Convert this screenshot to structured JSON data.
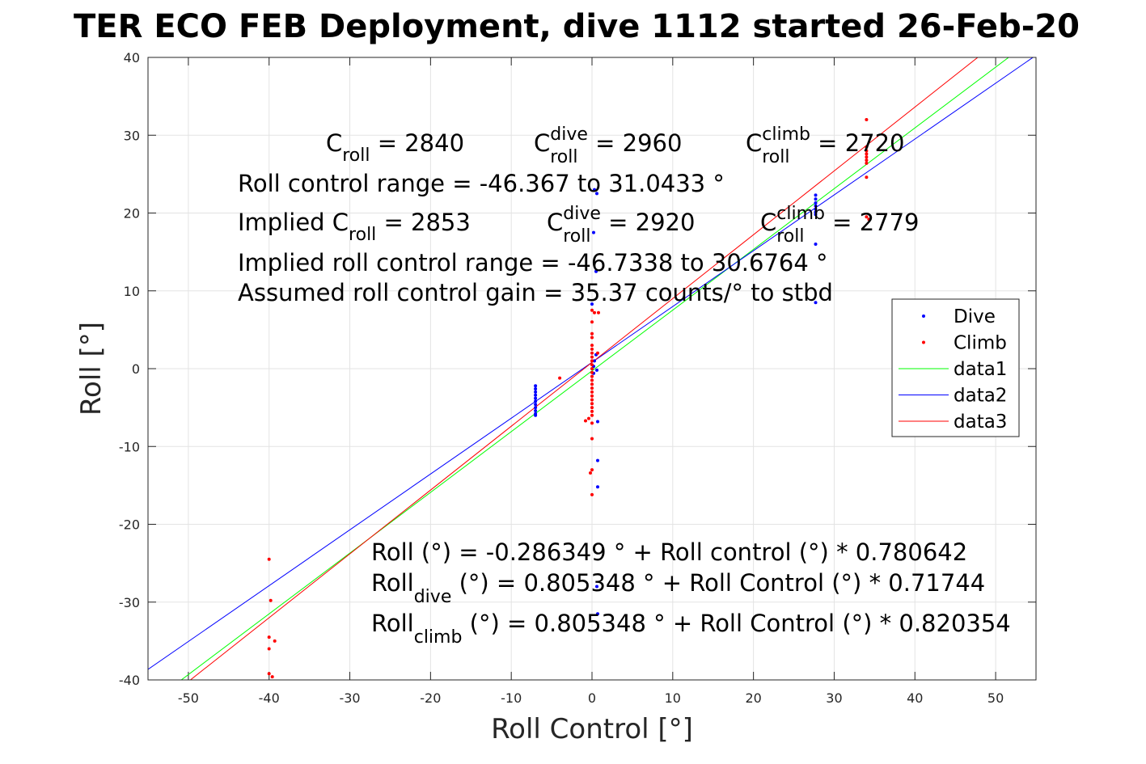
{
  "chart_data": {
    "type": "scatter",
    "title": "TER ECO FEB Deployment, dive 1112 started 26-Feb-20",
    "xlabel": "Roll Control [°]",
    "ylabel": "Roll [°]",
    "xlim": [
      -55,
      55
    ],
    "ylim": [
      -40,
      40
    ],
    "xticks": [
      -50,
      -40,
      -30,
      -20,
      -10,
      0,
      10,
      20,
      30,
      40,
      50
    ],
    "yticks": [
      -40,
      -30,
      -20,
      -10,
      0,
      10,
      20,
      30,
      40
    ],
    "xtick_labels": [
      "-50",
      "-40",
      "-30",
      "-20",
      "-10",
      "0",
      "10",
      "20",
      "30",
      "40",
      "50"
    ],
    "ytick_labels": [
      "-40",
      "-30",
      "-20",
      "-10",
      "0",
      "10",
      "20",
      "30",
      "40"
    ],
    "grid": true,
    "legend_position": "right",
    "series": [
      {
        "name": "Dive",
        "kind": "points",
        "color": "#0000ff",
        "points": [
          [
            -7,
            -2.2
          ],
          [
            -7,
            -2.6
          ],
          [
            -7,
            -3.0
          ],
          [
            -7,
            -3.4
          ],
          [
            -7,
            -3.8
          ],
          [
            -7,
            -4.2
          ],
          [
            -7,
            -4.6
          ],
          [
            -7,
            -5.0
          ],
          [
            -7,
            -5.4
          ],
          [
            -7,
            -5.8
          ],
          [
            -7,
            -6.0
          ],
          [
            0.3,
            23
          ],
          [
            0.6,
            22.5
          ],
          [
            0.2,
            17.5
          ],
          [
            0.5,
            12.5
          ],
          [
            0,
            8.3
          ],
          [
            0.5,
            1.8
          ],
          [
            0.3,
            1.0
          ],
          [
            0.2,
            0.3
          ],
          [
            0.6,
            -0.2
          ],
          [
            0.2,
            -0.6
          ],
          [
            0.7,
            -6.8
          ],
          [
            0.7,
            -11.8
          ],
          [
            0.7,
            -15.2
          ],
          [
            0.6,
            -28
          ],
          [
            0.7,
            -31.5
          ],
          [
            27.7,
            22.3
          ],
          [
            27.7,
            21.8
          ],
          [
            27.7,
            21.3
          ],
          [
            27.7,
            20.9
          ],
          [
            27.7,
            20.5
          ],
          [
            27.7,
            20.1
          ],
          [
            27.7,
            19.8
          ],
          [
            27.7,
            16
          ],
          [
            27.7,
            8.5
          ]
        ]
      },
      {
        "name": "Climb",
        "kind": "points",
        "color": "#ff0000",
        "points": [
          [
            -40,
            -24.5
          ],
          [
            -39.8,
            -29.8
          ],
          [
            -40,
            -34.5
          ],
          [
            -39.3,
            -35
          ],
          [
            -40,
            -36
          ],
          [
            -40,
            -39.2
          ],
          [
            -39.6,
            -39.6
          ],
          [
            -4,
            -1.2
          ],
          [
            -0.8,
            -6.7
          ],
          [
            -0.4,
            -6.4
          ],
          [
            0,
            7.5
          ],
          [
            0.3,
            7.2
          ],
          [
            0,
            6
          ],
          [
            0,
            4.5
          ],
          [
            0,
            4
          ],
          [
            0,
            3
          ],
          [
            0,
            2.5
          ],
          [
            0,
            2
          ],
          [
            0,
            1.5
          ],
          [
            0,
            1
          ],
          [
            0,
            0.5
          ],
          [
            0,
            0
          ],
          [
            0,
            -0.5
          ],
          [
            0,
            -1
          ],
          [
            0,
            -1.5
          ],
          [
            0,
            -2
          ],
          [
            0,
            -2.5
          ],
          [
            0,
            -3
          ],
          [
            0,
            -3.5
          ],
          [
            0,
            -4
          ],
          [
            0,
            -4.5
          ],
          [
            0,
            -5
          ],
          [
            0,
            -5.5
          ],
          [
            0,
            -6
          ],
          [
            0,
            -7
          ],
          [
            0,
            -9
          ],
          [
            0,
            -13
          ],
          [
            -0.2,
            -13.4
          ],
          [
            0,
            -16.2
          ],
          [
            0.8,
            7.2
          ],
          [
            0.7,
            2
          ],
          [
            34,
            32
          ],
          [
            34,
            28.5
          ],
          [
            34,
            28
          ],
          [
            34,
            27.6
          ],
          [
            34,
            27.2
          ],
          [
            34,
            26.8
          ],
          [
            34,
            26.4
          ],
          [
            34,
            24.6
          ],
          [
            34,
            19.5
          ],
          [
            34.3,
            19.2
          ]
        ]
      },
      {
        "name": "data1",
        "kind": "line",
        "color": "#00ff00",
        "points": [
          [
            -55,
            -43.22
          ],
          [
            55,
            42.65
          ]
        ]
      },
      {
        "name": "data2",
        "kind": "line",
        "color": "#0000ff",
        "points": [
          [
            -55,
            -38.65
          ],
          [
            55,
            40.27
          ]
        ]
      },
      {
        "name": "data3",
        "kind": "line",
        "color": "#ff0000",
        "points": [
          [
            -55,
            -44.31
          ],
          [
            55,
            45.92
          ]
        ]
      }
    ],
    "annotations": {
      "line1": [
        {
          "base": "C",
          "sub": "roll",
          "sup": "",
          "tail": " = 2840"
        },
        {
          "base": "C",
          "sub": "roll",
          "sup": "dive",
          "tail": " = 2960"
        },
        {
          "base": "C",
          "sub": "roll",
          "sup": "climb",
          "tail": " = 2720"
        }
      ],
      "line2": "Roll control range = -46.367 to 31.0433 °",
      "line3": [
        {
          "base": "Implied C",
          "sub": "roll",
          "sup": "",
          "tail": " = 2853"
        },
        {
          "base": "C",
          "sub": "roll",
          "sup": "dive",
          "tail": " = 2920"
        },
        {
          "base": "C",
          "sub": "roll",
          "sup": "climb",
          "tail": " = 2779"
        }
      ],
      "line4": "Implied roll control range = -46.7338 to 30.6764 °",
      "line5": "Assumed roll control gain = 35.37 counts/° to stbd",
      "fit1": "Roll (°) = -0.286349 ° + Roll control (°) * 0.780642",
      "fit2": {
        "base": "Roll",
        "sub": "dive",
        "tail": " (°) = 0.805348 ° + Roll Control (°) * 0.71744"
      },
      "fit3": {
        "base": "Roll",
        "sub": "climb",
        "tail": " (°) = 0.805348 ° + Roll Control (°) * 0.820354"
      }
    }
  }
}
